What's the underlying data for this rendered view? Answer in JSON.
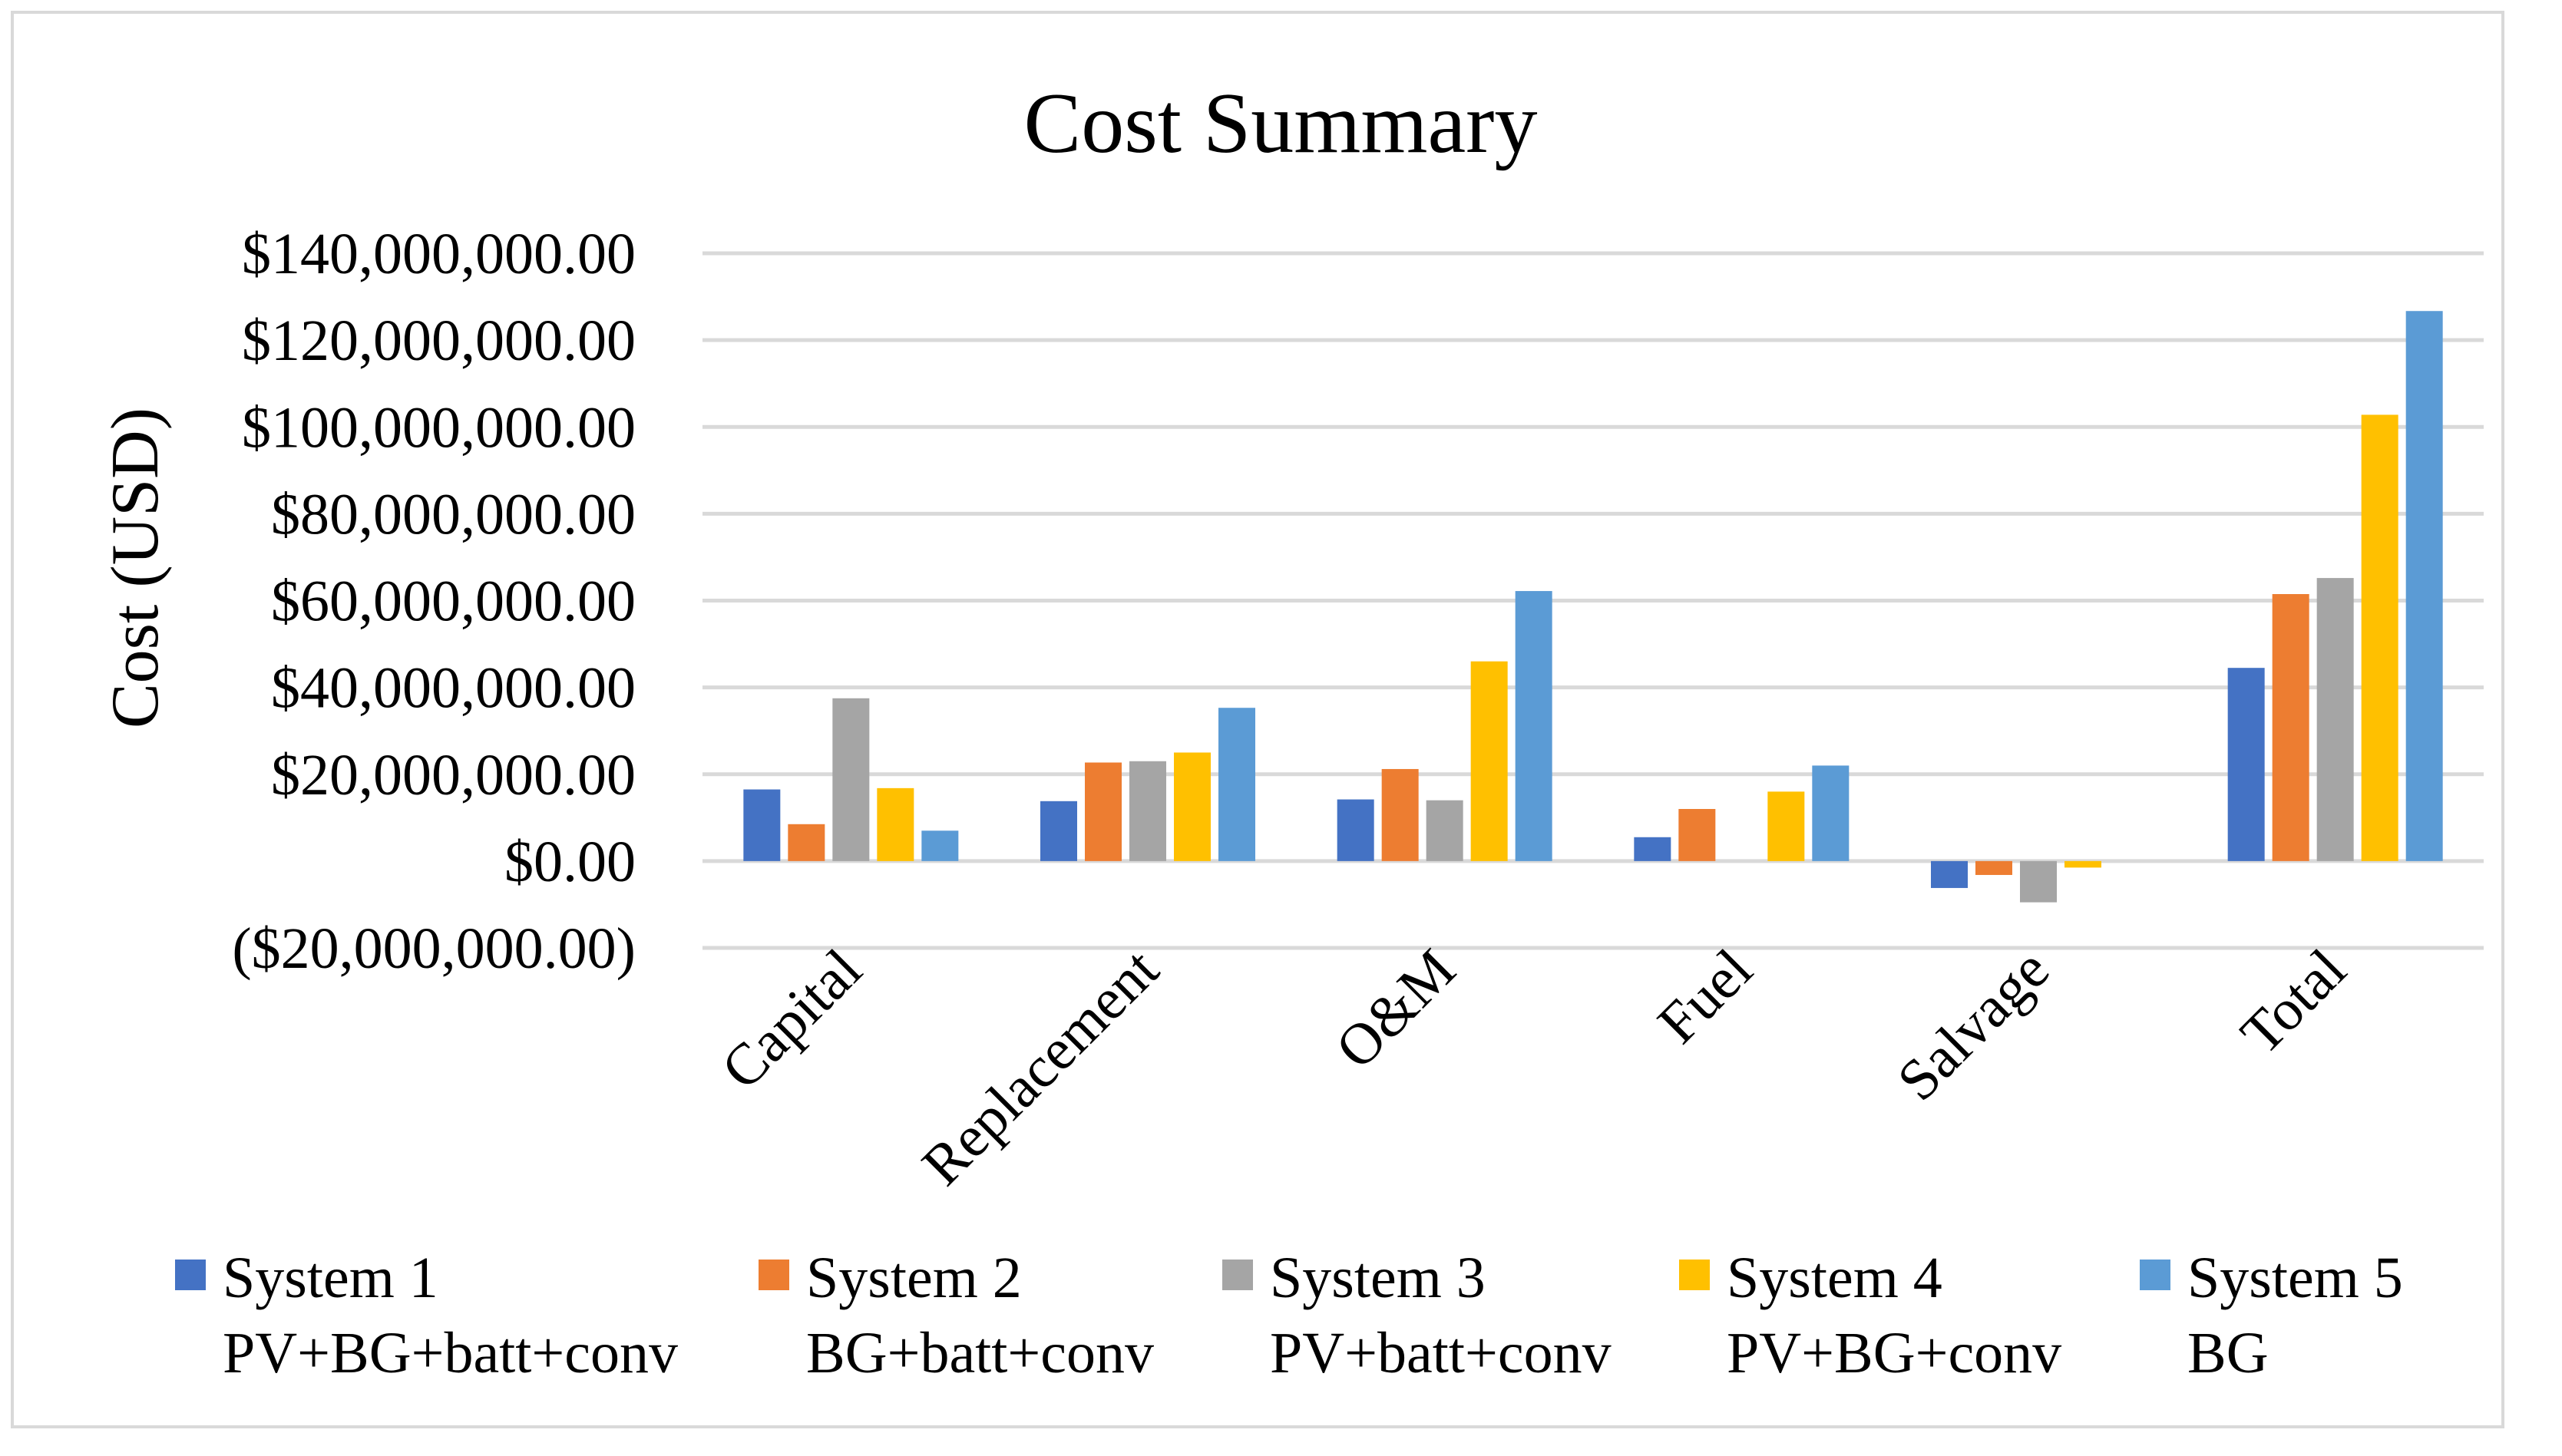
{
  "chart_data": {
    "type": "bar",
    "title": "Cost Summary",
    "xlabel": "",
    "ylabel": "Cost (USD)",
    "ylim": [
      -20000000,
      140000000
    ],
    "yticks": [
      {
        "value": 140000000,
        "label": "$140,000,000.00"
      },
      {
        "value": 120000000,
        "label": "$120,000,000.00"
      },
      {
        "value": 100000000,
        "label": "$100,000,000.00"
      },
      {
        "value": 80000000,
        "label": "$80,000,000.00"
      },
      {
        "value": 60000000,
        "label": "$60,000,000.00"
      },
      {
        "value": 40000000,
        "label": "$40,000,000.00"
      },
      {
        "value": 20000000,
        "label": "$20,000,000.00"
      },
      {
        "value": 0,
        "label": "$0.00"
      },
      {
        "value": -20000000,
        "label": "($20,000,000.00)"
      }
    ],
    "negative_tick_color": "#ff0000",
    "grid": true,
    "legend_position": "bottom",
    "categories": [
      "Capital",
      "Replacement",
      "O&M",
      "Fuel",
      "Salvage",
      "Total"
    ],
    "series": [
      {
        "name": "System 1",
        "name_line2": "PV+BG+batt+conv",
        "color": "#4472c4",
        "values": [
          16500000,
          13800000,
          14200000,
          5500000,
          -6200000,
          44500000
        ]
      },
      {
        "name": "System 2",
        "name_line2": "BG+batt+conv",
        "color": "#ed7d31",
        "values": [
          8500000,
          22700000,
          21200000,
          12000000,
          -3200000,
          61500000
        ]
      },
      {
        "name": "System 3",
        "name_line2": "PV+batt+conv",
        "color": "#a5a5a5",
        "values": [
          37500000,
          23000000,
          14000000,
          0,
          -9500000,
          65200000
        ]
      },
      {
        "name": "System 4",
        "name_line2": "PV+BG+conv",
        "color": "#ffc000",
        "values": [
          16800000,
          25000000,
          46000000,
          16000000,
          -1500000,
          102800000
        ]
      },
      {
        "name": "System 5",
        "name_line2": "BG",
        "color": "#5b9bd5",
        "values": [
          7000000,
          35300000,
          62200000,
          22000000,
          0,
          126700000
        ]
      }
    ]
  }
}
